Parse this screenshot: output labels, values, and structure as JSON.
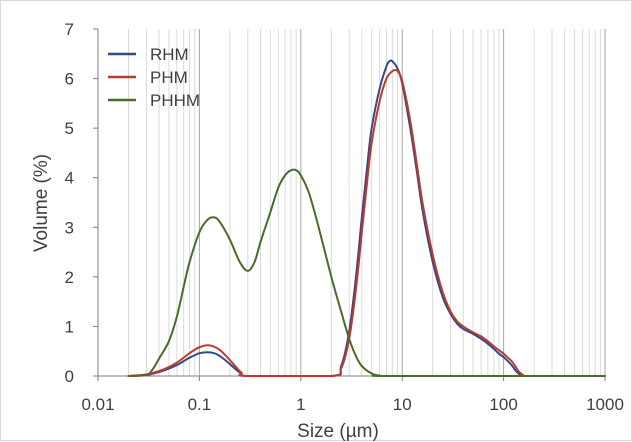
{
  "chart_data": {
    "type": "line",
    "title": "",
    "xlabel": "Size (µm)",
    "ylabel": "Volume (%)",
    "x_scale": "log",
    "xlim": [
      0.01,
      1000
    ],
    "ylim": [
      0,
      7
    ],
    "x_ticks": [
      0.01,
      0.1,
      1,
      10,
      100,
      1000
    ],
    "x_tick_labels": [
      "0.01",
      "0.1",
      "1",
      "10",
      "100",
      "1000"
    ],
    "y_ticks": [
      0,
      1,
      2,
      3,
      4,
      5,
      6,
      7
    ],
    "y_tick_labels": [
      "0",
      "1",
      "2",
      "3",
      "4",
      "5",
      "6",
      "7"
    ],
    "grid": "vertical minor and major (log)",
    "legend_position": "top-left",
    "series": [
      {
        "name": "RHM",
        "color": "#2f4b8c",
        "points": [
          [
            0.02,
            0
          ],
          [
            0.03,
            0.02
          ],
          [
            0.04,
            0.08
          ],
          [
            0.05,
            0.15
          ],
          [
            0.06,
            0.22
          ],
          [
            0.07,
            0.3
          ],
          [
            0.08,
            0.37
          ],
          [
            0.09,
            0.42
          ],
          [
            0.1,
            0.46
          ],
          [
            0.12,
            0.48
          ],
          [
            0.14,
            0.46
          ],
          [
            0.16,
            0.4
          ],
          [
            0.18,
            0.32
          ],
          [
            0.2,
            0.24
          ],
          [
            0.23,
            0.13
          ],
          [
            0.26,
            0.05
          ],
          [
            0.3,
            0
          ],
          [
            2,
            0
          ],
          [
            2.5,
            0.2
          ],
          [
            3,
            0.9
          ],
          [
            3.5,
            2.0
          ],
          [
            4,
            3.2
          ],
          [
            4.5,
            4.2
          ],
          [
            5,
            5.0
          ],
          [
            6,
            5.8
          ],
          [
            7,
            6.25
          ],
          [
            7.5,
            6.35
          ],
          [
            8,
            6.35
          ],
          [
            9,
            6.2
          ],
          [
            10,
            5.9
          ],
          [
            12,
            5.0
          ],
          [
            14,
            4.1
          ],
          [
            16,
            3.3
          ],
          [
            20,
            2.3
          ],
          [
            25,
            1.6
          ],
          [
            30,
            1.25
          ],
          [
            35,
            1.05
          ],
          [
            40,
            0.95
          ],
          [
            50,
            0.85
          ],
          [
            60,
            0.75
          ],
          [
            70,
            0.65
          ],
          [
            80,
            0.55
          ],
          [
            90,
            0.45
          ],
          [
            100,
            0.38
          ],
          [
            110,
            0.3
          ],
          [
            120,
            0.22
          ],
          [
            130,
            0.12
          ],
          [
            140,
            0.05
          ],
          [
            150,
            0.01
          ],
          [
            160,
            0
          ]
        ]
      },
      {
        "name": "PHM",
        "color": "#c0392b",
        "points": [
          [
            0.02,
            0
          ],
          [
            0.03,
            0.03
          ],
          [
            0.04,
            0.1
          ],
          [
            0.05,
            0.18
          ],
          [
            0.06,
            0.27
          ],
          [
            0.07,
            0.37
          ],
          [
            0.08,
            0.46
          ],
          [
            0.09,
            0.53
          ],
          [
            0.1,
            0.58
          ],
          [
            0.12,
            0.62
          ],
          [
            0.14,
            0.59
          ],
          [
            0.16,
            0.52
          ],
          [
            0.18,
            0.42
          ],
          [
            0.2,
            0.32
          ],
          [
            0.23,
            0.18
          ],
          [
            0.26,
            0.07
          ],
          [
            0.3,
            0
          ],
          [
            2,
            0
          ],
          [
            2.5,
            0.15
          ],
          [
            3,
            0.75
          ],
          [
            3.5,
            1.75
          ],
          [
            4,
            2.9
          ],
          [
            4.5,
            3.9
          ],
          [
            5,
            4.7
          ],
          [
            6,
            5.55
          ],
          [
            7,
            6.0
          ],
          [
            8,
            6.15
          ],
          [
            8.5,
            6.17
          ],
          [
            9,
            6.15
          ],
          [
            10,
            5.95
          ],
          [
            12,
            5.15
          ],
          [
            14,
            4.25
          ],
          [
            16,
            3.45
          ],
          [
            20,
            2.45
          ],
          [
            25,
            1.7
          ],
          [
            30,
            1.3
          ],
          [
            35,
            1.1
          ],
          [
            40,
            1.0
          ],
          [
            50,
            0.88
          ],
          [
            60,
            0.8
          ],
          [
            70,
            0.7
          ],
          [
            80,
            0.6
          ],
          [
            90,
            0.52
          ],
          [
            100,
            0.45
          ],
          [
            110,
            0.37
          ],
          [
            120,
            0.3
          ],
          [
            130,
            0.2
          ],
          [
            140,
            0.1
          ],
          [
            150,
            0.04
          ],
          [
            160,
            0
          ]
        ]
      },
      {
        "name": "PHHM",
        "color": "#4a6b2a",
        "points": [
          [
            0.02,
            0
          ],
          [
            0.03,
            0.02
          ],
          [
            0.035,
            0.15
          ],
          [
            0.04,
            0.35
          ],
          [
            0.05,
            0.7
          ],
          [
            0.06,
            1.2
          ],
          [
            0.07,
            1.8
          ],
          [
            0.08,
            2.3
          ],
          [
            0.1,
            2.9
          ],
          [
            0.12,
            3.15
          ],
          [
            0.14,
            3.2
          ],
          [
            0.16,
            3.1
          ],
          [
            0.2,
            2.75
          ],
          [
            0.25,
            2.3
          ],
          [
            0.3,
            2.12
          ],
          [
            0.35,
            2.3
          ],
          [
            0.4,
            2.7
          ],
          [
            0.5,
            3.3
          ],
          [
            0.6,
            3.8
          ],
          [
            0.7,
            4.05
          ],
          [
            0.8,
            4.15
          ],
          [
            0.9,
            4.15
          ],
          [
            1.0,
            4.05
          ],
          [
            1.2,
            3.7
          ],
          [
            1.5,
            3.0
          ],
          [
            2,
            2.0
          ],
          [
            2.5,
            1.3
          ],
          [
            3,
            0.75
          ],
          [
            3.5,
            0.4
          ],
          [
            4,
            0.2
          ],
          [
            5,
            0.05
          ],
          [
            6,
            0.01
          ],
          [
            8,
            0
          ],
          [
            1000,
            0
          ]
        ]
      }
    ]
  }
}
